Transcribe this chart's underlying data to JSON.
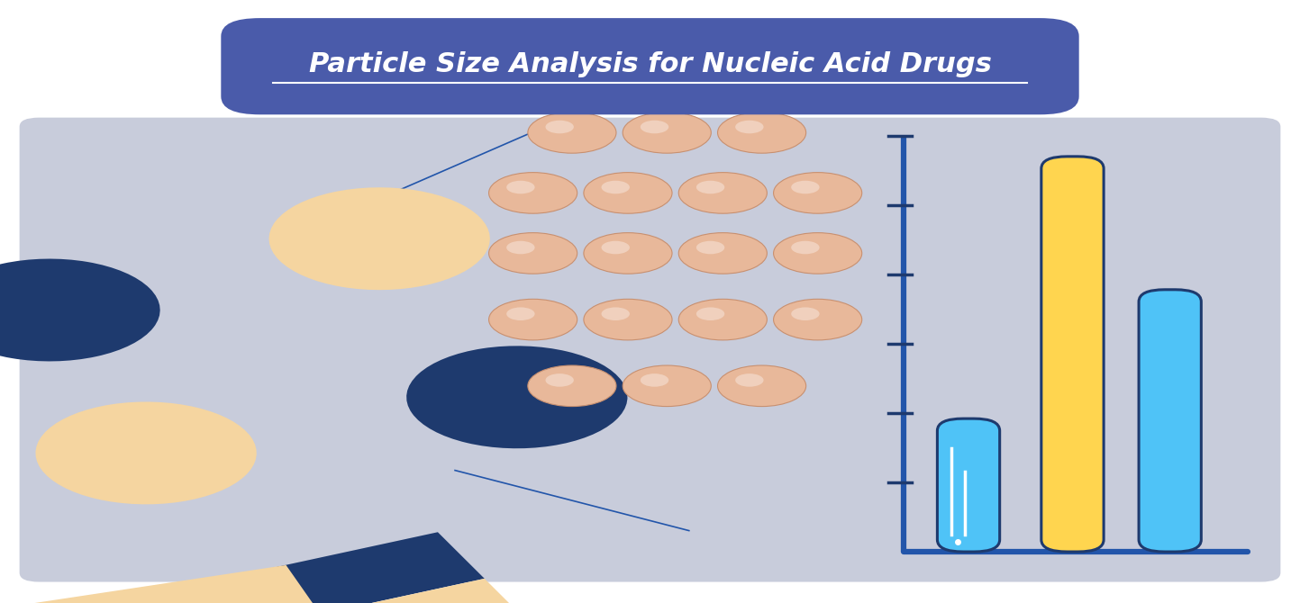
{
  "title": "Particle Size Analysis for Nucleic Acid Drugs",
  "title_bg_color": "#4A5BAA",
  "title_text_color": "#FFFFFF",
  "bg_color": "#FFFFFF",
  "panel_bg_color": "#C8CCDB",
  "capsule_dark_color": "#1E3A6E",
  "capsule_light_color": "#F5D5A0",
  "particle_color": "#E8B89A",
  "particle_edge_color": "#C89070",
  "bar1_color": "#4FC3F7",
  "bar2_color": "#FFD54F",
  "bar3_color": "#4FC3F7",
  "bar_outline_color": "#1E3A6E",
  "axis_color": "#2255AA",
  "tick_color": "#1E3A6E",
  "line_color": "#2255AA",
  "figsize": [
    14.43,
    6.7
  ],
  "dpi": 100
}
